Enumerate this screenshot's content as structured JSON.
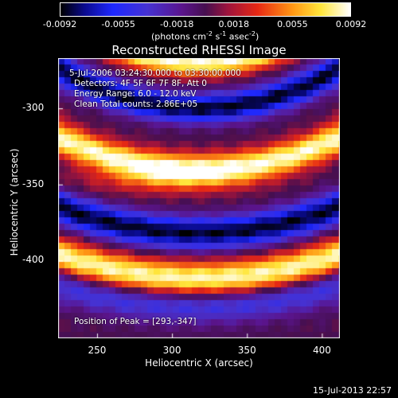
{
  "chart_data": {
    "type": "heatmap",
    "title": "Reconstructed RHESSI Image",
    "xlabel": "Heliocentric X (arcsec)",
    "ylabel": "Heliocentric Y (arcsec)",
    "xlim": [
      224,
      412
    ],
    "ylim": [
      -451,
      -267
    ],
    "x_ticks": [
      250,
      300,
      350,
      400
    ],
    "y_ticks": [
      -300,
      -350,
      -400
    ],
    "x_tick_labels": [
      "250",
      "300",
      "350",
      "400"
    ],
    "y_tick_labels": [
      "-300",
      "-350",
      "-400"
    ],
    "colorbar": {
      "range": [
        -0.0092,
        0.0092
      ],
      "tick_values": [
        -0.0092,
        -0.0055,
        -0.0018,
        0.0018,
        0.0055,
        0.0092
      ],
      "tick_labels": [
        "-0.0092",
        "-0.0055",
        "-0.0018",
        "0.0018",
        "0.0055",
        "0.0092"
      ],
      "unit_text": "photons cm",
      "unit_sup1": "-2",
      "unit_mid1": " s",
      "unit_sup2": "-1",
      "unit_mid2": " asec",
      "unit_sup3": "-2",
      "colormap": "rhessi-blue-purple-red-yellow-white"
    },
    "annotations": {
      "time_range": "5-Jul-2006 03:24:30.000 to 03:30:00.000",
      "detectors": "Detectors: 4F 5F 6F 7F 8F, Att 0",
      "energy": "Energy Range: 6.0 - 12.0 keV",
      "clean": "Clean      Total counts: 2.86E+05",
      "peak": "Position of Peak = [293,-347]"
    },
    "peak_position": [
      293,
      -347
    ],
    "band_centers_y_at_x318": [
      -270,
      -300,
      -340,
      -382,
      -412,
      -430
    ],
    "band_signs": [
      1,
      -1,
      1,
      -1,
      1,
      -0.5
    ],
    "arc_center": [
      318,
      -120
    ],
    "arc_radii": [
      150,
      180,
      220,
      262,
      292,
      310
    ]
  },
  "footer": {
    "timestamp": "15-Jul-2013 22:57"
  }
}
